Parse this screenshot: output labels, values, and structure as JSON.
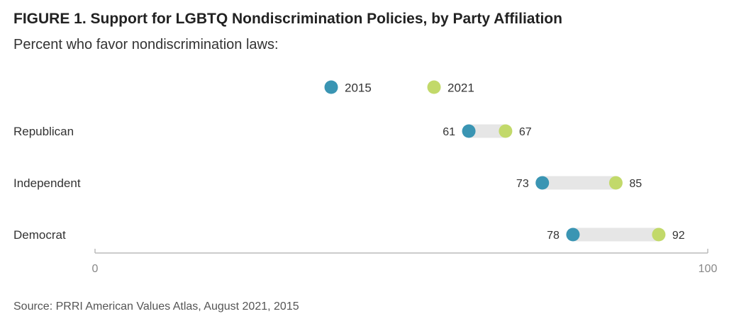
{
  "chart_data": {
    "type": "dumbbell",
    "title": "FIGURE 1.  Support for LGBTQ Nondiscrimination Policies, by Party Affiliation",
    "subtitle": "Percent who favor nondiscrimination laws:",
    "categories": [
      "Republican",
      "Independent",
      "Democrat"
    ],
    "series": [
      {
        "name": "2015",
        "values": [
          61,
          73,
          78
        ],
        "color": "#3a95b3"
      },
      {
        "name": "2021",
        "values": [
          67,
          85,
          92
        ],
        "color": "#c2d96a"
      }
    ],
    "xlim": [
      0,
      100
    ],
    "xticks": [
      "0",
      "100"
    ],
    "grid": false,
    "legend": "top-center",
    "connector_color": "#e6e6e6"
  },
  "source": "Source: PRRI American Values Atlas, August 2021, 2015"
}
